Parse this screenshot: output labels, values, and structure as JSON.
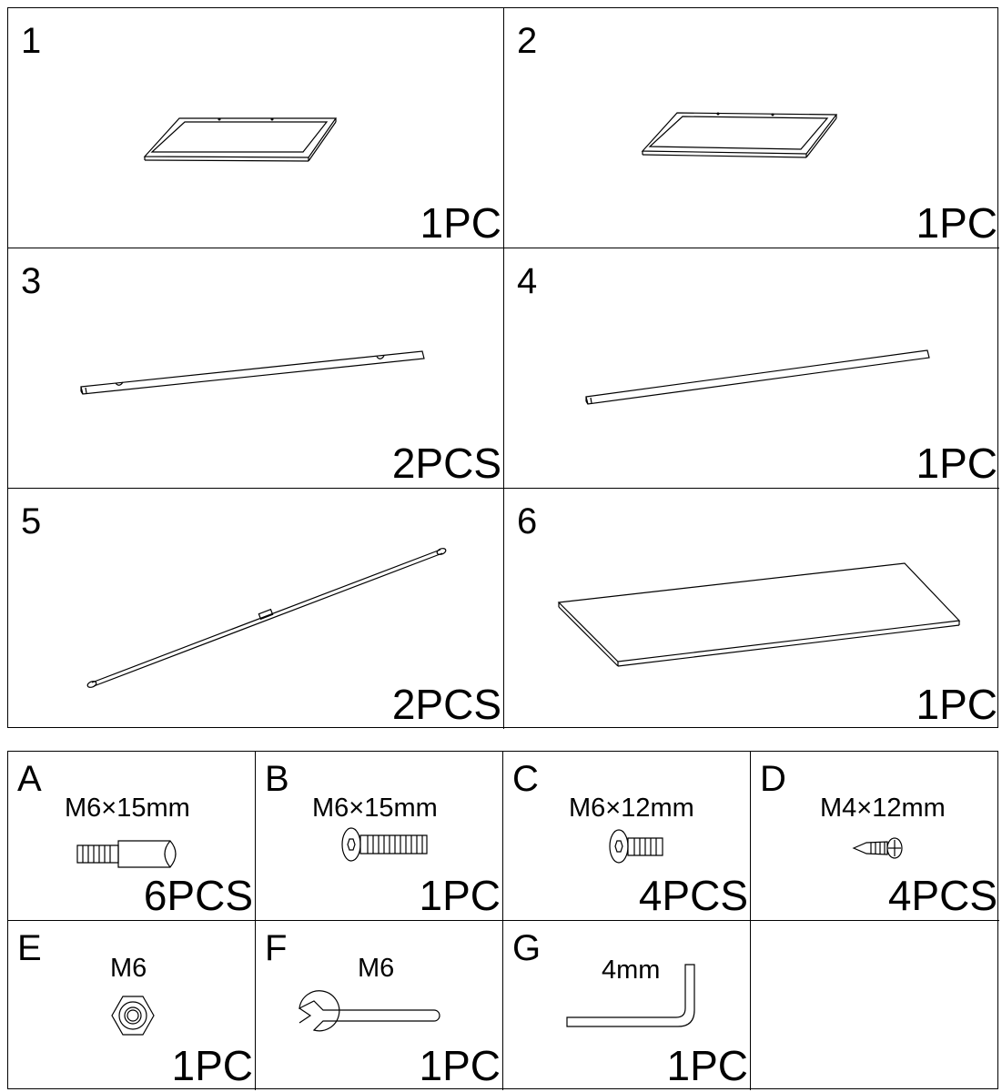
{
  "parts": [
    {
      "number": "1",
      "quantity": "1PC",
      "icon": "frame-icon"
    },
    {
      "number": "2",
      "quantity": "1PC",
      "icon": "frame-icon"
    },
    {
      "number": "3",
      "quantity": "2PCS",
      "icon": "bar-icon"
    },
    {
      "number": "4",
      "quantity": "1PC",
      "icon": "bar-icon"
    },
    {
      "number": "5",
      "quantity": "2PCS",
      "icon": "rod-icon"
    },
    {
      "number": "6",
      "quantity": "1PC",
      "icon": "panel-icon"
    }
  ],
  "hardware": [
    {
      "letter": "A",
      "spec": "M6×15mm",
      "quantity": "6PCS",
      "icon": "dowel-icon"
    },
    {
      "letter": "B",
      "spec": "M6×15mm",
      "quantity": "1PC",
      "icon": "hex-bolt-icon"
    },
    {
      "letter": "C",
      "spec": "M6×12mm",
      "quantity": "4PCS",
      "icon": "hex-bolt-icon"
    },
    {
      "letter": "D",
      "spec": "M4×12mm",
      "quantity": "4PCS",
      "icon": "screw-icon"
    },
    {
      "letter": "E",
      "spec": "M6",
      "quantity": "1PC",
      "icon": "nut-icon"
    },
    {
      "letter": "F",
      "spec": "M6",
      "quantity": "1PC",
      "icon": "wrench-icon"
    },
    {
      "letter": "G",
      "spec": "4mm",
      "quantity": "1PC",
      "icon": "allen-key-icon"
    }
  ]
}
